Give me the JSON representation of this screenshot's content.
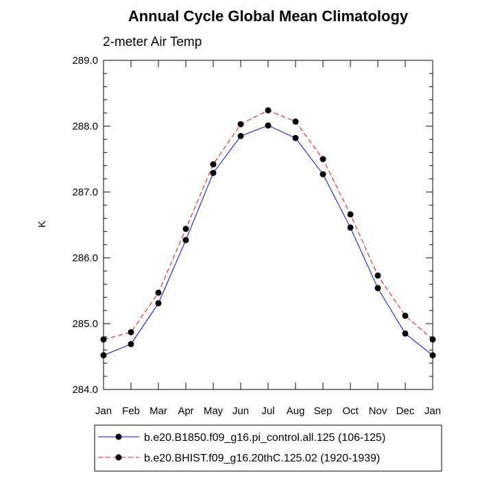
{
  "chart_data": {
    "type": "line",
    "title": "Annual Cycle Global Mean Climatology",
    "subtitle": "2-meter Air Temp",
    "xlabel": "",
    "ylabel": "K",
    "categories": [
      "Jan",
      "Feb",
      "Mar",
      "Apr",
      "May",
      "Jun",
      "Jul",
      "Aug",
      "Sep",
      "Oct",
      "Nov",
      "Dec",
      "Jan"
    ],
    "ylim": [
      284.0,
      289.0
    ],
    "yticks": [
      "284.0",
      "285.0",
      "286.0",
      "287.0",
      "288.0",
      "289.0"
    ],
    "grid": false,
    "legend_position": "bottom",
    "series": [
      {
        "name": "b.e20.B1850.f09_g16.pi_control.all.125 (106-125)",
        "color": "#0000ff",
        "style": "solid",
        "values": [
          284.52,
          284.69,
          285.31,
          286.27,
          287.29,
          287.85,
          288.01,
          287.82,
          287.27,
          286.46,
          285.54,
          284.85,
          284.52
        ]
      },
      {
        "name": "b.e20.BHIST.f09_g16.20thC.125.02 (1920-1939)",
        "color": "#ff0000",
        "style": "dashed",
        "values": [
          284.76,
          284.87,
          285.47,
          286.44,
          287.42,
          288.03,
          288.24,
          288.07,
          287.5,
          286.66,
          285.73,
          285.12,
          284.76
        ]
      }
    ]
  }
}
